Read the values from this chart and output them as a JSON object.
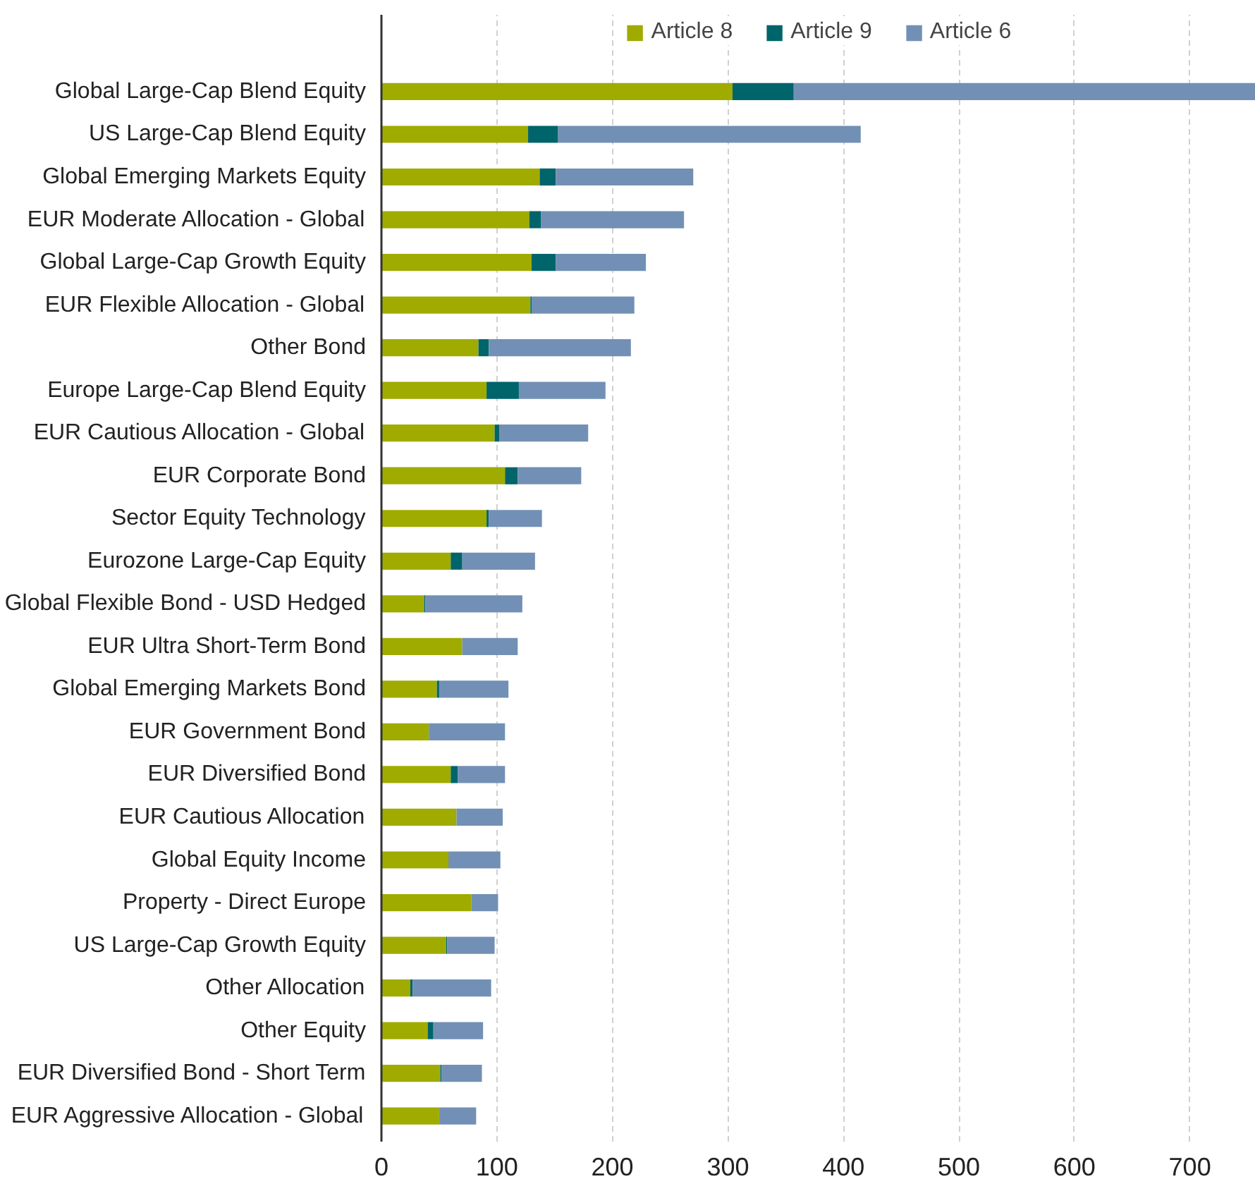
{
  "chart_data": {
    "type": "bar",
    "orientation": "horizontal",
    "stacked": true,
    "categories": [
      "Global Large-Cap Blend Equity",
      "US Large-Cap Blend Equity",
      "Global Emerging Markets Equity",
      "EUR Moderate Allocation - Global",
      "Global Large-Cap Growth Equity",
      "EUR Flexible Allocation - Global",
      "Other Bond",
      "Europe Large-Cap Blend Equity",
      "EUR Cautious Allocation - Global",
      "EUR Corporate Bond",
      "Sector Equity Technology",
      "Eurozone Large-Cap Equity",
      "Global Flexible Bond - USD Hedged",
      "EUR Ultra Short-Term Bond",
      "Global Emerging Markets Bond",
      "EUR Government Bond",
      "EUR Diversified Bond",
      "EUR Cautious Allocation",
      "Global Equity Income",
      "Property - Direct Europe",
      "US Large-Cap Growth Equity",
      "Other Allocation",
      "Other Equity",
      "EUR Diversified Bond - Short Term",
      "EUR Aggressive Allocation - Global"
    ],
    "series": [
      {
        "name": "Article 8",
        "color": "#a0ab00",
        "values": [
          304,
          127,
          137,
          128,
          130,
          129,
          84,
          91,
          98,
          107,
          91,
          60,
          37,
          70,
          48,
          41,
          60,
          65,
          58,
          78,
          56,
          25,
          40,
          51,
          50
        ]
      },
      {
        "name": "Article 9",
        "color": "#00646b",
        "values": [
          53,
          26,
          14,
          10,
          21,
          1,
          9,
          28,
          4,
          11,
          2,
          10,
          1,
          0,
          2,
          0,
          6,
          0,
          0,
          0,
          1,
          2,
          5,
          1,
          0
        ]
      },
      {
        "name": "Article 6",
        "color": "#7290b5",
        "values": [
          400,
          262,
          119,
          124,
          78,
          89,
          123,
          75,
          77,
          55,
          46,
          63,
          84,
          48,
          60,
          66,
          41,
          40,
          45,
          23,
          41,
          68,
          43,
          35,
          32
        ]
      }
    ],
    "xlim": [
      0,
      757
    ],
    "xticks": [
      0,
      100,
      200,
      300,
      400,
      500,
      600,
      700
    ],
    "grid": "x",
    "legend": "top"
  }
}
